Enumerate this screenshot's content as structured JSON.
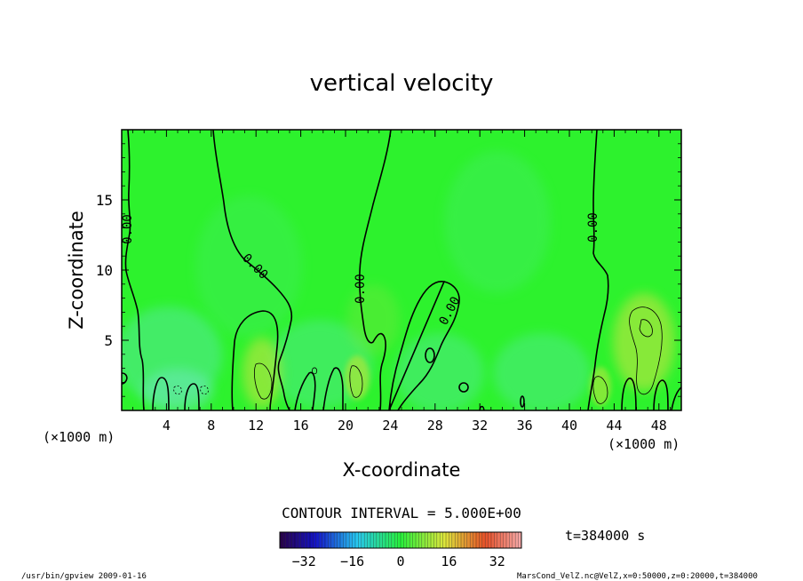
{
  "chart_data": {
    "type": "heatmap",
    "title": "vertical velocity",
    "xlabel": "X-coordinate",
    "ylabel": "Z-coordinate",
    "x_unit": "(×1000 m)",
    "y_unit": "(×1000 m)",
    "xlim": [
      0,
      50
    ],
    "ylim": [
      0,
      20
    ],
    "x_ticks": [
      4,
      8,
      12,
      16,
      20,
      24,
      28,
      32,
      36,
      40,
      44,
      48
    ],
    "y_ticks": [
      5,
      10,
      15
    ],
    "contour_interval": "CONTOUR INTERVAL = 5.000E+00",
    "contour_labels": [
      "0.00",
      "0.00",
      "0.00",
      "0.00",
      "0.00"
    ],
    "time_label": "t=384000 s",
    "colorbar": {
      "range": [
        -40,
        40
      ],
      "tick_labels": [
        "−32",
        "−16",
        "0",
        "16",
        "32"
      ],
      "tick_values": [
        -32,
        -16,
        0,
        16,
        32
      ]
    },
    "colors": {
      "background_field": "#2df22d",
      "negative_patch": "#55e898",
      "positive_patch": "#a6e63c",
      "contour": "#000000"
    }
  },
  "footer": {
    "left": "/usr/bin/gpview   2009-01-16",
    "right": "MarsCond_VelZ.nc@VelZ,x=0:50000,z=0:20000,t=384000"
  }
}
